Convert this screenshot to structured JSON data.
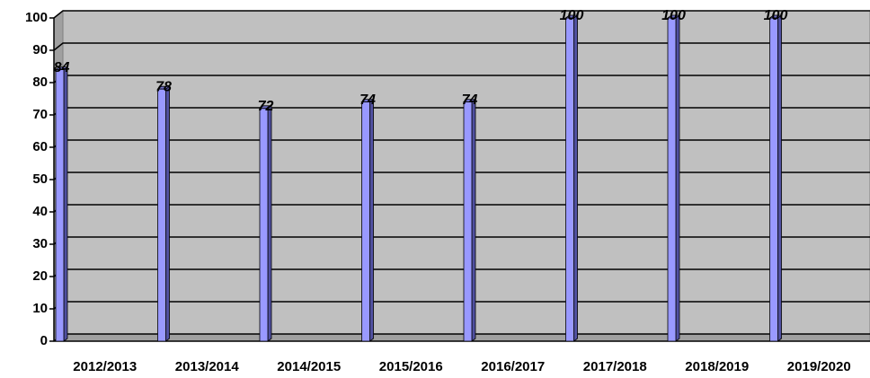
{
  "chart_data": {
    "type": "bar",
    "categories": [
      "2012/2013",
      "2013/2014",
      "2014/2015",
      "2015/2016",
      "2016/2017",
      "2017/2018",
      "2018/2019",
      "2019/2020"
    ],
    "values": [
      84,
      78,
      72,
      74,
      74,
      100,
      100,
      100
    ],
    "color": "#9999ff",
    "ylim": [
      0,
      100
    ],
    "yticks": [
      0,
      10,
      20,
      30,
      40,
      50,
      60,
      70,
      80,
      90,
      100
    ],
    "grid": true
  }
}
